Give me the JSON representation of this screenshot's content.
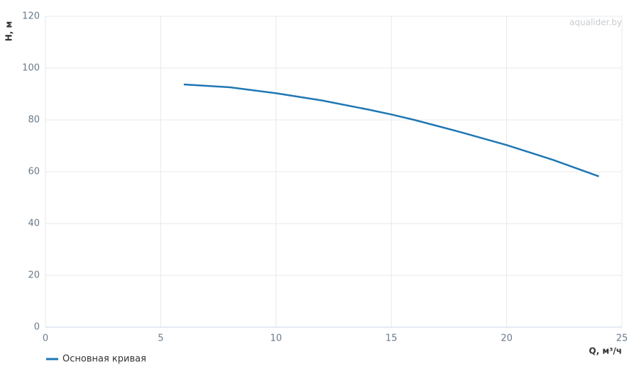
{
  "chart_data": {
    "type": "line",
    "x_label": "Q, м³/ч",
    "y_label": "H, м",
    "watermark": "aqualider.by",
    "x": [
      6,
      8,
      10,
      12,
      14,
      15,
      16,
      18,
      20,
      22,
      24
    ],
    "series": [
      {
        "name": "Основная кривая",
        "color": "#1f77b4",
        "values": [
          93.7,
          92.6,
          90.3,
          87.5,
          84,
          82.1,
          80,
          75.3,
          70.3,
          64.6,
          58.2
        ]
      }
    ],
    "xlim": [
      0,
      25
    ],
    "xticks": [
      0,
      5,
      10,
      15,
      20,
      25
    ],
    "ylim": [
      0,
      120
    ],
    "yticks": [
      0,
      20,
      40,
      60,
      80,
      100,
      120
    ],
    "grid": true
  }
}
